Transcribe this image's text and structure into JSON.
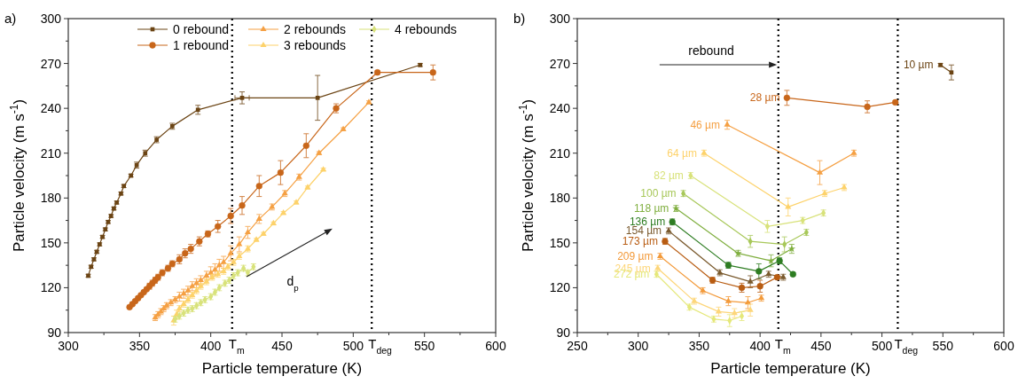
{
  "chart_data": [
    {
      "type": "line",
      "title": "a)",
      "xlabel": "Particle temperature (K)",
      "ylabel": "Particle velocity (m s$^{-1}$)",
      "xlim": [
        300,
        600
      ],
      "xticks": [
        300,
        350,
        400,
        450,
        500,
        550,
        600
      ],
      "ylim": [
        90,
        300
      ],
      "yticks": [
        90,
        120,
        150,
        180,
        210,
        240,
        270,
        300
      ],
      "legend": "top",
      "annotations": [
        "d$_{p}$"
      ],
      "ref_lines": [
        {
          "axis": "x",
          "value": 415,
          "label": "T$_{m}$",
          "color": "#000000",
          "line_style": "dotted"
        },
        {
          "axis": "x",
          "value": 513,
          "label": "T$_{deg}$",
          "color": "#000000",
          "line_style": "dotted"
        }
      ],
      "series": [
        {
          "name": "0 rebound",
          "color": "#6b4414",
          "marker": "square",
          "x": [
            314,
            316,
            318,
            320,
            322,
            324,
            326,
            328,
            330,
            332,
            334,
            337,
            339,
            344,
            348,
            354,
            362,
            373,
            391,
            422,
            475,
            547
          ],
          "values": [
            128,
            134,
            139,
            144,
            149,
            154,
            159,
            164,
            168,
            173,
            177,
            183,
            188,
            195,
            202,
            210,
            219,
            228,
            239,
            247,
            247,
            269
          ],
          "errors": [
            1,
            1,
            1,
            1,
            1,
            1,
            1,
            1,
            1,
            1,
            1,
            1,
            1,
            1,
            2,
            2,
            2,
            2,
            3,
            4,
            15,
            1
          ],
          "xerrors": [
            null,
            null,
            null,
            null,
            null,
            null,
            null,
            null,
            null,
            null,
            null,
            null,
            null,
            null,
            null,
            null,
            null,
            null,
            null,
            5,
            null,
            null
          ]
        },
        {
          "name": "1 rebound",
          "color": "#c8661a",
          "marker": "circle",
          "x": [
            343,
            345,
            347,
            349,
            351,
            353,
            355,
            357,
            359,
            361,
            363,
            366,
            370,
            373,
            378,
            382,
            386,
            392,
            398,
            405,
            414,
            422,
            434,
            449,
            467,
            488,
            517,
            556
          ],
          "values": [
            107,
            109,
            111,
            113,
            115,
            117,
            119,
            121,
            123,
            125,
            127,
            130,
            133,
            136,
            139,
            143,
            146,
            151,
            156,
            161,
            168,
            175,
            188,
            197,
            215,
            240,
            264,
            264
          ],
          "errors": [
            1,
            1,
            1,
            1,
            1,
            1,
            1,
            2,
            2,
            2,
            2,
            2,
            2,
            2,
            3,
            3,
            3,
            3,
            2,
            4,
            5,
            6,
            7,
            8,
            8,
            3,
            1,
            5
          ]
        },
        {
          "name": "2 rebounds",
          "color": "#f5a043",
          "marker": "triangle",
          "x": [
            361,
            363,
            365,
            367,
            369,
            372,
            375,
            378,
            381,
            384,
            387,
            390,
            393,
            397,
            400,
            403,
            406,
            409,
            414,
            420,
            426,
            434,
            443,
            452,
            462,
            476,
            493,
            511
          ],
          "values": [
            100,
            102,
            104,
            106,
            108,
            110,
            112,
            114,
            116,
            118,
            121,
            123,
            125,
            128,
            130,
            132,
            135,
            137,
            143,
            149,
            157,
            166,
            174,
            183,
            194,
            210,
            226,
            244
          ],
          "errors": [
            2,
            2,
            2,
            2,
            2,
            2,
            2,
            3,
            3,
            3,
            3,
            3,
            3,
            3,
            4,
            4,
            4,
            4,
            5,
            5,
            4,
            3,
            2,
            2,
            2,
            1,
            1,
            1
          ]
        },
        {
          "name": "3 rebounds",
          "color": "#fdd26a",
          "marker": "triangle",
          "x": [
            374,
            376,
            378,
            381,
            384,
            387,
            390,
            393,
            397,
            401,
            405,
            409,
            412,
            416,
            420,
            426,
            432,
            437,
            444,
            451,
            460,
            468,
            479
          ],
          "values": [
            98,
            102,
            106,
            109,
            112,
            115,
            118,
            121,
            124,
            127,
            129,
            131,
            134,
            137,
            141,
            146,
            152,
            156,
            163,
            170,
            177,
            187,
            199
          ],
          "errors": [
            3,
            3,
            2,
            2,
            2,
            2,
            2,
            2,
            2,
            2,
            2,
            2,
            2,
            2,
            2,
            2,
            1,
            1,
            1,
            1,
            1,
            1,
            1
          ]
        },
        {
          "name": "4 rebounds",
          "color": "#d8e27a",
          "marker": "diamond",
          "x": [
            375,
            378,
            381,
            384,
            387,
            390,
            393,
            396,
            400,
            403,
            406,
            410,
            413,
            416,
            419,
            423,
            426,
            430
          ],
          "values": [
            99,
            101,
            103,
            105,
            106,
            108,
            110,
            112,
            114,
            117,
            120,
            123,
            125,
            128,
            130,
            133,
            130,
            134
          ],
          "errors": [
            2,
            2,
            2,
            2,
            2,
            2,
            2,
            2,
            2,
            2,
            2,
            2,
            2,
            2,
            2,
            2,
            2,
            2
          ]
        }
      ]
    },
    {
      "type": "line",
      "title": "b)",
      "xlabel": "Particle temperature (K)",
      "ylabel": "Particle velocity (m s$^{-1}$)",
      "xlim": [
        250,
        600
      ],
      "xticks": [
        250,
        300,
        350,
        400,
        450,
        500,
        550,
        600
      ],
      "ylim": [
        90,
        300
      ],
      "yticks": [
        90,
        120,
        150,
        180,
        210,
        240,
        270,
        300
      ],
      "annotations": [
        "rebound"
      ],
      "ref_lines": [
        {
          "axis": "x",
          "value": 415,
          "label": "T$_{m}$",
          "color": "#000000",
          "line_style": "dotted"
        },
        {
          "axis": "x",
          "value": 513,
          "label": "T$_{deg}$",
          "color": "#000000",
          "line_style": "dotted"
        }
      ],
      "series": [
        {
          "name": "10 µm",
          "color": "#6b4414",
          "marker": "square",
          "x": [
            548,
            557
          ],
          "values": [
            269,
            264
          ],
          "errors": [
            1,
            5
          ]
        },
        {
          "name": "28 µm",
          "color": "#c8661a",
          "marker": "circle",
          "x": [
            422,
            488,
            511
          ],
          "values": [
            247,
            241,
            244
          ],
          "errors": [
            5,
            4,
            1
          ]
        },
        {
          "name": "46 µm",
          "color": "#f5a043",
          "marker": "triangle",
          "x": [
            373,
            449,
            477
          ],
          "values": [
            229,
            197,
            210
          ],
          "errors": [
            3,
            8,
            2
          ]
        },
        {
          "name": "64 µm",
          "color": "#fdd26a",
          "marker": "triangle",
          "x": [
            354,
            423,
            453,
            469
          ],
          "values": [
            210,
            174,
            183,
            187
          ],
          "errors": [
            2,
            6,
            2,
            2
          ]
        },
        {
          "name": "82 µm",
          "color": "#d8e27a",
          "marker": "diamond",
          "x": [
            343,
            406,
            435,
            452
          ],
          "values": [
            195,
            161,
            165,
            170
          ],
          "errors": [
            2,
            4,
            2,
            2
          ]
        },
        {
          "name": "100 µm",
          "color": "#a8c85a",
          "marker": "diamond",
          "x": [
            337,
            392,
            420,
            438
          ],
          "values": [
            183,
            151,
            149,
            157
          ],
          "errors": [
            2,
            4,
            5,
            2
          ]
        },
        {
          "name": "118 µm",
          "color": "#7fae3e",
          "marker": "star",
          "x": [
            331,
            382,
            409,
            426
          ],
          "values": [
            173,
            143,
            138,
            146
          ],
          "errors": [
            2,
            2,
            4,
            3
          ]
        },
        {
          "name": "136 µm",
          "color": "#2e7d22",
          "marker": "circle",
          "x": [
            328,
            374,
            399,
            416,
            427
          ],
          "values": [
            164,
            135,
            131,
            138,
            129
          ],
          "errors": [
            2,
            2,
            5,
            2,
            1
          ]
        },
        {
          "name": "154 µm",
          "color": "#7a5a2e",
          "marker": "triangle",
          "x": [
            325,
            367,
            392,
            407,
            419
          ],
          "values": [
            158,
            130,
            124,
            129,
            127
          ],
          "errors": [
            2,
            2,
            4,
            2,
            2
          ]
        },
        {
          "name": "173 µm",
          "color": "#b85c12",
          "marker": "circle",
          "x": [
            322,
            361,
            385,
            400,
            414
          ],
          "values": [
            151,
            125,
            120,
            121,
            127
          ],
          "errors": [
            2,
            2,
            3,
            4,
            1
          ]
        },
        {
          "name": "209 µm",
          "color": "#f39a3a",
          "marker": "triangle",
          "x": [
            318,
            353,
            374,
            390,
            401
          ],
          "values": [
            141,
            118,
            111,
            110,
            113
          ],
          "errors": [
            2,
            2,
            3,
            4,
            2
          ]
        },
        {
          "name": "245 µm",
          "color": "#fdd67a",
          "marker": "triangle",
          "x": [
            316,
            346,
            366,
            379,
            392
          ],
          "values": [
            133,
            111,
            104,
            103,
            105
          ],
          "errors": [
            2,
            2,
            3,
            3,
            4
          ]
        },
        {
          "name": "272 µm",
          "color": "#e5e87a",
          "marker": "diamond",
          "x": [
            315,
            342,
            362,
            375,
            385
          ],
          "values": [
            129,
            107,
            99,
            98,
            101
          ],
          "errors": [
            2,
            2,
            2,
            4,
            3
          ]
        }
      ]
    }
  ]
}
